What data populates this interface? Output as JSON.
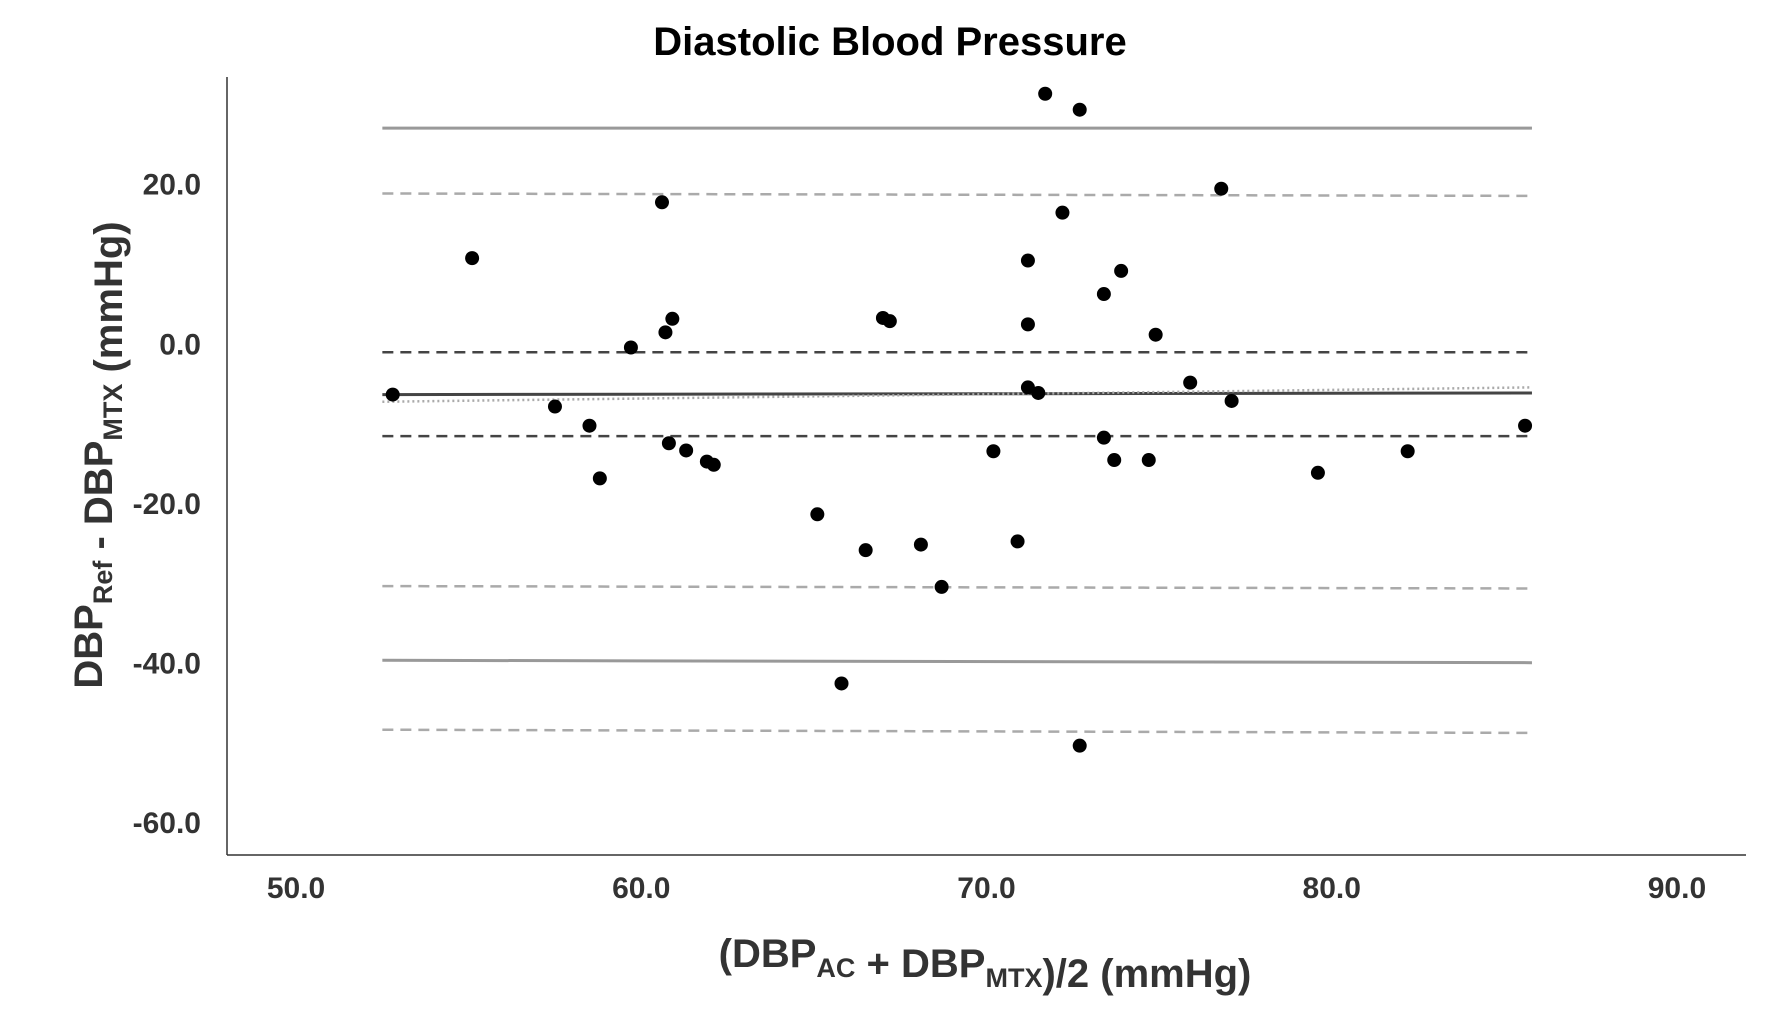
{
  "chart_data": {
    "type": "scatter",
    "title": "Diastolic Blood Pressure",
    "xlabel": {
      "parts": [
        {
          "text": "(DBP",
          "sub": false
        },
        {
          "text": "AC",
          "sub": true
        },
        {
          "text": " + DBP",
          "sub": false
        },
        {
          "text": "MTX",
          "sub": true
        },
        {
          "text": ")/2 (mmHg)",
          "sub": false
        }
      ]
    },
    "ylabel": {
      "parts": [
        {
          "text": "DBP",
          "sub": false
        },
        {
          "text": "Ref",
          "sub": true
        },
        {
          "text": " - DBP",
          "sub": false
        },
        {
          "text": "MTX",
          "sub": true
        },
        {
          "text": " (mmHg)",
          "sub": false
        }
      ]
    },
    "xlim": [
      48,
      92
    ],
    "ylim": [
      -64,
      33.5
    ],
    "x_ticks": [
      50,
      60,
      70,
      80,
      90
    ],
    "x_tick_labels": [
      "50.0",
      "60.0",
      "70.0",
      "80.0",
      "90.0"
    ],
    "y_ticks": [
      20,
      0,
      -20,
      -40,
      -60
    ],
    "y_tick_labels": [
      "20.0",
      "0.0",
      "-20.0",
      "-40.0",
      "-60.0"
    ],
    "grid": false,
    "points": [
      {
        "x": 52.8,
        "y": -6.3
      },
      {
        "x": 55.1,
        "y": 10.8
      },
      {
        "x": 57.5,
        "y": -7.8
      },
      {
        "x": 58.5,
        "y": -10.2
      },
      {
        "x": 58.8,
        "y": -16.8
      },
      {
        "x": 59.7,
        "y": -0.4
      },
      {
        "x": 60.6,
        "y": 17.8
      },
      {
        "x": 60.7,
        "y": 1.5
      },
      {
        "x": 60.8,
        "y": -12.4
      },
      {
        "x": 60.9,
        "y": 3.2
      },
      {
        "x": 61.3,
        "y": -13.3
      },
      {
        "x": 61.9,
        "y": -14.7
      },
      {
        "x": 62.1,
        "y": -15.1
      },
      {
        "x": 65.1,
        "y": -21.3
      },
      {
        "x": 65.8,
        "y": -42.5
      },
      {
        "x": 66.5,
        "y": -25.8
      },
      {
        "x": 67.0,
        "y": 3.3
      },
      {
        "x": 67.2,
        "y": 2.9
      },
      {
        "x": 68.1,
        "y": -25.1
      },
      {
        "x": 68.7,
        "y": -30.4
      },
      {
        "x": 70.2,
        "y": -13.4
      },
      {
        "x": 70.9,
        "y": -24.7
      },
      {
        "x": 71.2,
        "y": 10.5
      },
      {
        "x": 71.2,
        "y": 2.5
      },
      {
        "x": 71.2,
        "y": -5.4
      },
      {
        "x": 71.5,
        "y": -6.1
      },
      {
        "x": 71.7,
        "y": 31.4
      },
      {
        "x": 72.2,
        "y": 16.5
      },
      {
        "x": 72.7,
        "y": 29.4
      },
      {
        "x": 72.7,
        "y": -50.3
      },
      {
        "x": 73.4,
        "y": 6.3
      },
      {
        "x": 73.4,
        "y": -11.7
      },
      {
        "x": 73.7,
        "y": -14.5
      },
      {
        "x": 73.9,
        "y": 9.2
      },
      {
        "x": 74.7,
        "y": -14.5
      },
      {
        "x": 74.9,
        "y": 1.2
      },
      {
        "x": 75.9,
        "y": -4.8
      },
      {
        "x": 76.8,
        "y": 19.5
      },
      {
        "x": 77.1,
        "y": -7.1
      },
      {
        "x": 79.6,
        "y": -16.1
      },
      {
        "x": 82.2,
        "y": -13.4
      },
      {
        "x": 85.6,
        "y": -10.2
      }
    ],
    "reference_lines": [
      {
        "x_start": 52.5,
        "x_end": 85.8,
        "y_start": 27.1,
        "y_end": 27.1,
        "style": "solid",
        "color": "#999999"
      },
      {
        "x_start": 52.5,
        "x_end": 85.8,
        "y_start": 18.9,
        "y_end": 18.6,
        "style": "dashed",
        "color": "#aaaaaa"
      },
      {
        "x_start": 52.5,
        "x_end": 85.8,
        "y_start": -1.0,
        "y_end": -1.0,
        "style": "dashed",
        "color": "#444444"
      },
      {
        "x_start": 52.5,
        "x_end": 85.8,
        "y_start": -6.3,
        "y_end": -6.1,
        "style": "solid",
        "color": "#444444"
      },
      {
        "x_start": 52.5,
        "x_end": 85.8,
        "y_start": -7.2,
        "y_end": -5.4,
        "style": "dotted",
        "color": "#aaaaaa"
      },
      {
        "x_start": 52.5,
        "x_end": 85.8,
        "y_start": -11.5,
        "y_end": -11.5,
        "style": "dashed",
        "color": "#444444"
      },
      {
        "x_start": 52.5,
        "x_end": 85.8,
        "y_start": -30.3,
        "y_end": -30.6,
        "style": "dashed",
        "color": "#aaaaaa"
      },
      {
        "x_start": 52.5,
        "x_end": 85.8,
        "y_start": -39.6,
        "y_end": -39.9,
        "style": "solid",
        "color": "#999999"
      },
      {
        "x_start": 52.5,
        "x_end": 85.8,
        "y_start": -48.3,
        "y_end": -48.7,
        "style": "dashed",
        "color": "#aaaaaa"
      }
    ],
    "colors": {
      "point": "#000000",
      "axis": "#333333"
    }
  }
}
